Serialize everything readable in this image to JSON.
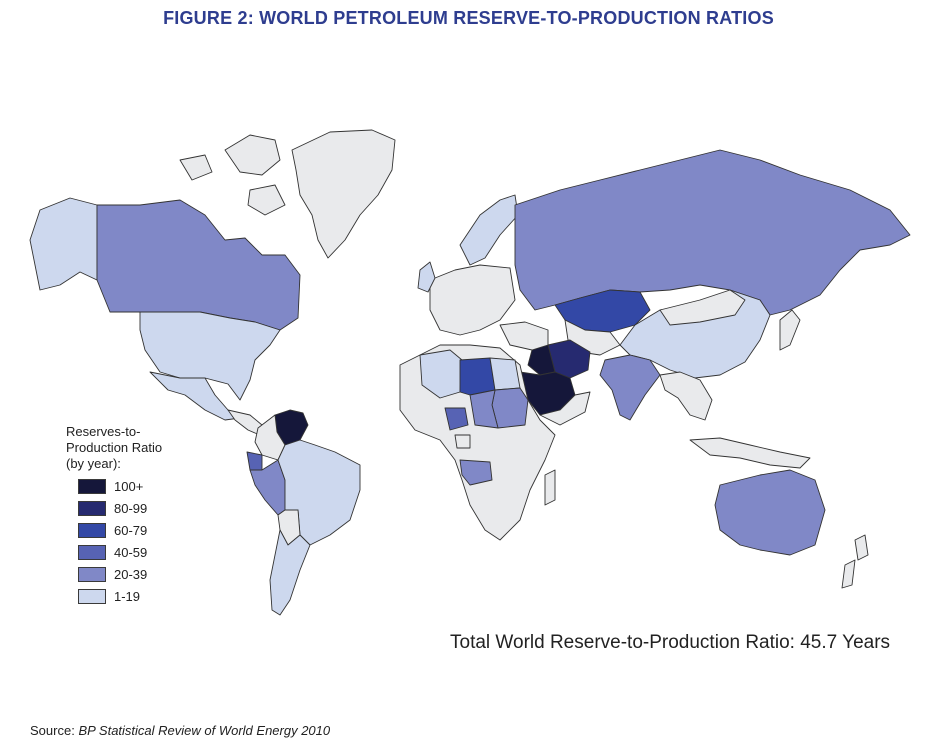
{
  "title": "FIGURE 2: WORLD PETROLEUM RESERVE-TO-PRODUCTION RATIOS",
  "legend": {
    "title_lines": [
      "Reserves-to-",
      "Production Ratio",
      "(by year):"
    ],
    "items": [
      {
        "label": "100+",
        "color": "#15173a"
      },
      {
        "label": "80-99",
        "color": "#262a70"
      },
      {
        "label": "60-79",
        "color": "#3348a6"
      },
      {
        "label": "40-59",
        "color": "#5763b4"
      },
      {
        "label": "20-39",
        "color": "#8088c7"
      },
      {
        "label": "1-19",
        "color": "#cdd8ee"
      }
    ],
    "no_data_color": "#e9eaec"
  },
  "total": "Total World Reserve-to-Production Ratio: 45.7 Years",
  "source": {
    "prefix": "Source:",
    "text": "BP Statistical Review of World Energy 2010"
  },
  "regions": [
    {
      "name": "alaska",
      "class": "1-19"
    },
    {
      "name": "canada",
      "class": "20-39"
    },
    {
      "name": "usa",
      "class": "1-19"
    },
    {
      "name": "mexico",
      "class": "1-19"
    },
    {
      "name": "venezuela",
      "class": "100+"
    },
    {
      "name": "brazil",
      "class": "1-19"
    },
    {
      "name": "ecuador",
      "class": "40-59"
    },
    {
      "name": "peru",
      "class": "20-39"
    },
    {
      "name": "russia",
      "class": "20-39"
    },
    {
      "name": "kazakhstan",
      "class": "60-79"
    },
    {
      "name": "china",
      "class": "1-19"
    },
    {
      "name": "india",
      "class": "20-39"
    },
    {
      "name": "australia",
      "class": "20-39"
    },
    {
      "name": "saudi-arabia",
      "class": "100+"
    },
    {
      "name": "iran",
      "class": "80-99"
    },
    {
      "name": "iraq",
      "class": "100+"
    },
    {
      "name": "libya",
      "class": "60-79"
    },
    {
      "name": "algeria",
      "class": "1-19"
    },
    {
      "name": "egypt",
      "class": "1-19"
    },
    {
      "name": "nigeria",
      "class": "40-59"
    },
    {
      "name": "angola",
      "class": "20-39"
    },
    {
      "name": "sudan",
      "class": "20-39"
    },
    {
      "name": "chad",
      "class": "20-39"
    },
    {
      "name": "norway",
      "class": "1-19"
    },
    {
      "name": "uk",
      "class": "1-19"
    },
    {
      "name": "greenland",
      "class": "none"
    },
    {
      "name": "africa-other",
      "class": "none"
    },
    {
      "name": "europe-other",
      "class": "none"
    },
    {
      "name": "argentina",
      "class": "1-19"
    }
  ]
}
